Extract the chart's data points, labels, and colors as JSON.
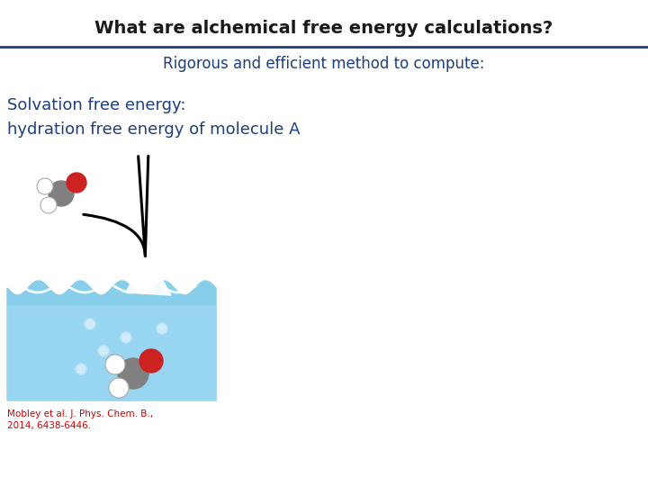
{
  "title": "What are alchemical free energy calculations?",
  "subtitle": "Rigorous and efficient method to compute:",
  "body_line1": "Solvation free energy:",
  "body_line2": "hydration free energy of molecule A",
  "citation_line1": "Mobley et al. J. Phys. Chem. B.,",
  "citation_line2": "2014, 6438-6446.",
  "title_color": "#1a1a1a",
  "subtitle_color": "#1f3f7a",
  "body_color": "#1f3f7a",
  "citation_color": "#cc0000",
  "divider_color": "#1f3f7a",
  "bg_color": "#ffffff",
  "title_fontsize": 14,
  "subtitle_fontsize": 12,
  "body_fontsize": 13,
  "citation_fontsize": 7.5,
  "water_color": "#87ceeb",
  "water_light": "#b0e0f8",
  "splash_color": "#ffffff",
  "bubble_color": "#d0eeff"
}
